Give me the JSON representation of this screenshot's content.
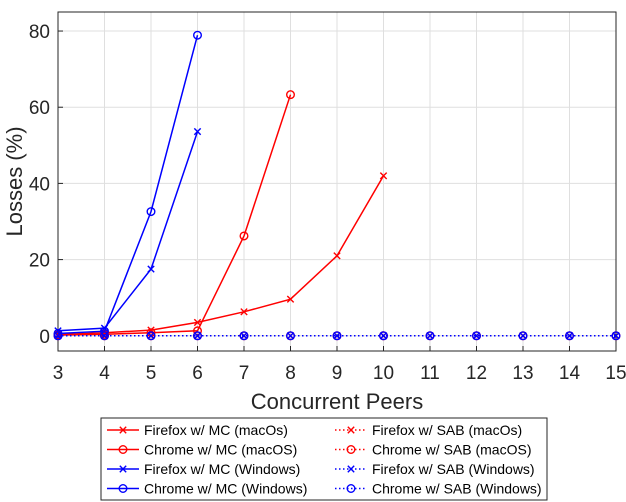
{
  "chart_data": {
    "type": "line",
    "xlabel": "Concurrent Peers",
    "ylabel": "Losses (%)",
    "xlim": [
      3,
      15
    ],
    "ylim": [
      -4,
      85
    ],
    "xticks": [
      3,
      4,
      5,
      6,
      7,
      8,
      9,
      10,
      11,
      12,
      13,
      14,
      15
    ],
    "yticks": [
      0,
      20,
      40,
      60,
      80
    ],
    "grid": true,
    "legend_placement": "bottom",
    "series": [
      {
        "name": "Firefox w/ MC (macOs)",
        "color": "#ff0000",
        "marker": "x",
        "dash": "solid",
        "x": [
          3,
          4,
          5,
          6,
          7,
          8,
          9,
          10
        ],
        "y": [
          0.3,
          0.8,
          1.5,
          3.5,
          6.3,
          9.6,
          21.0,
          42.0
        ]
      },
      {
        "name": "Chrome w/ MC (macOS)",
        "color": "#ff0000",
        "marker": "o",
        "dash": "solid",
        "x": [
          3,
          4,
          5,
          6,
          7,
          8
        ],
        "y": [
          0.2,
          0.4,
          0.8,
          1.3,
          26.2,
          63.3
        ]
      },
      {
        "name": "Firefox w/ MC (Windows)",
        "color": "#0000ff",
        "marker": "x",
        "dash": "solid",
        "x": [
          3,
          4,
          5,
          6
        ],
        "y": [
          1.3,
          2.0,
          17.5,
          53.6
        ]
      },
      {
        "name": "Chrome w/ MC (Windows)",
        "color": "#0000ff",
        "marker": "o",
        "dash": "solid",
        "x": [
          3,
          4,
          5,
          6
        ],
        "y": [
          0.6,
          1.2,
          32.6,
          78.9
        ]
      },
      {
        "name": "Firefox w/ SAB (macOs)",
        "color": "#ff0000",
        "marker": "x",
        "dash": "dotted",
        "x": [
          3,
          4,
          5,
          6,
          7,
          8,
          9,
          10,
          11,
          12,
          13,
          14,
          15
        ],
        "y": [
          0,
          0,
          0,
          0,
          0,
          0,
          0,
          0,
          0,
          0,
          0,
          0,
          0
        ]
      },
      {
        "name": "Chrome w/ SAB (macOS)",
        "color": "#ff0000",
        "marker": "o",
        "dash": "dotted",
        "x": [
          3,
          4,
          5,
          6,
          7,
          8,
          9,
          10,
          11,
          12,
          13,
          14,
          15
        ],
        "y": [
          0,
          0,
          0,
          0,
          0,
          0,
          0,
          0,
          0,
          0,
          0,
          0,
          0
        ]
      },
      {
        "name": "Firefox w/ SAB (Windows)",
        "color": "#0000ff",
        "marker": "x",
        "dash": "dotted",
        "x": [
          3,
          4,
          5,
          6,
          7,
          8,
          9,
          10,
          11,
          12,
          13,
          14,
          15
        ],
        "y": [
          0,
          0,
          0,
          0,
          0,
          0,
          0,
          0,
          0,
          0,
          0,
          0,
          0
        ]
      },
      {
        "name": "Chrome w/ SAB (Windows)",
        "color": "#0000ff",
        "marker": "o",
        "dash": "dotted",
        "x": [
          3,
          4,
          5,
          6,
          7,
          8,
          9,
          10,
          11,
          12,
          13,
          14,
          15
        ],
        "y": [
          0,
          0,
          0,
          0,
          0,
          0,
          0,
          0,
          0,
          0,
          0,
          0,
          0
        ]
      }
    ]
  }
}
